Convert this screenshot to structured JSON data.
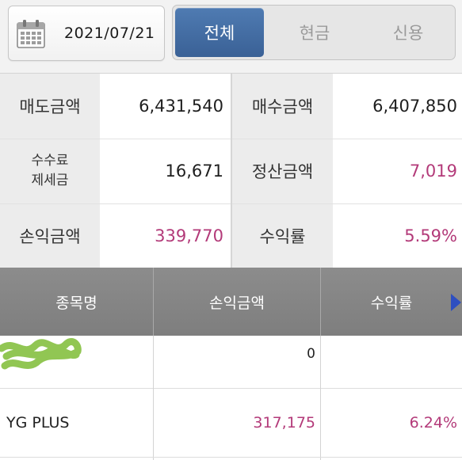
{
  "header": {
    "date": "2021/07/21",
    "tabs": [
      {
        "label": "전체",
        "active": true
      },
      {
        "label": "현금",
        "active": false
      },
      {
        "label": "신용",
        "active": false
      }
    ]
  },
  "summary": {
    "sell_amount_label": "매도금액",
    "sell_amount": "6,431,540",
    "buy_amount_label": "매수금액",
    "buy_amount": "6,407,850",
    "fee_tax_label_line1": "수수료",
    "fee_tax_label_line2": "제세금",
    "fee_tax": "16,671",
    "settlement_label": "정산금액",
    "settlement": "7,019",
    "profit_label": "손익금액",
    "profit": "339,770",
    "return_label": "수익률",
    "return_rate": "5.59%"
  },
  "table": {
    "columns": [
      "종목명",
      "손익금액",
      "수익률"
    ],
    "rows": [
      {
        "name": "",
        "profit": "0",
        "rate": ""
      },
      {
        "name": "YG PLUS",
        "profit": "317,175",
        "rate": "6.24%"
      }
    ]
  },
  "colors": {
    "accent": "#3f6aa3",
    "positive": "#b33a79",
    "header_gray": "#858585",
    "redaction_green": "#8bc34a"
  },
  "icons": {
    "date_picker": "calendar-icon",
    "next_columns": "triangle-right-icon"
  }
}
